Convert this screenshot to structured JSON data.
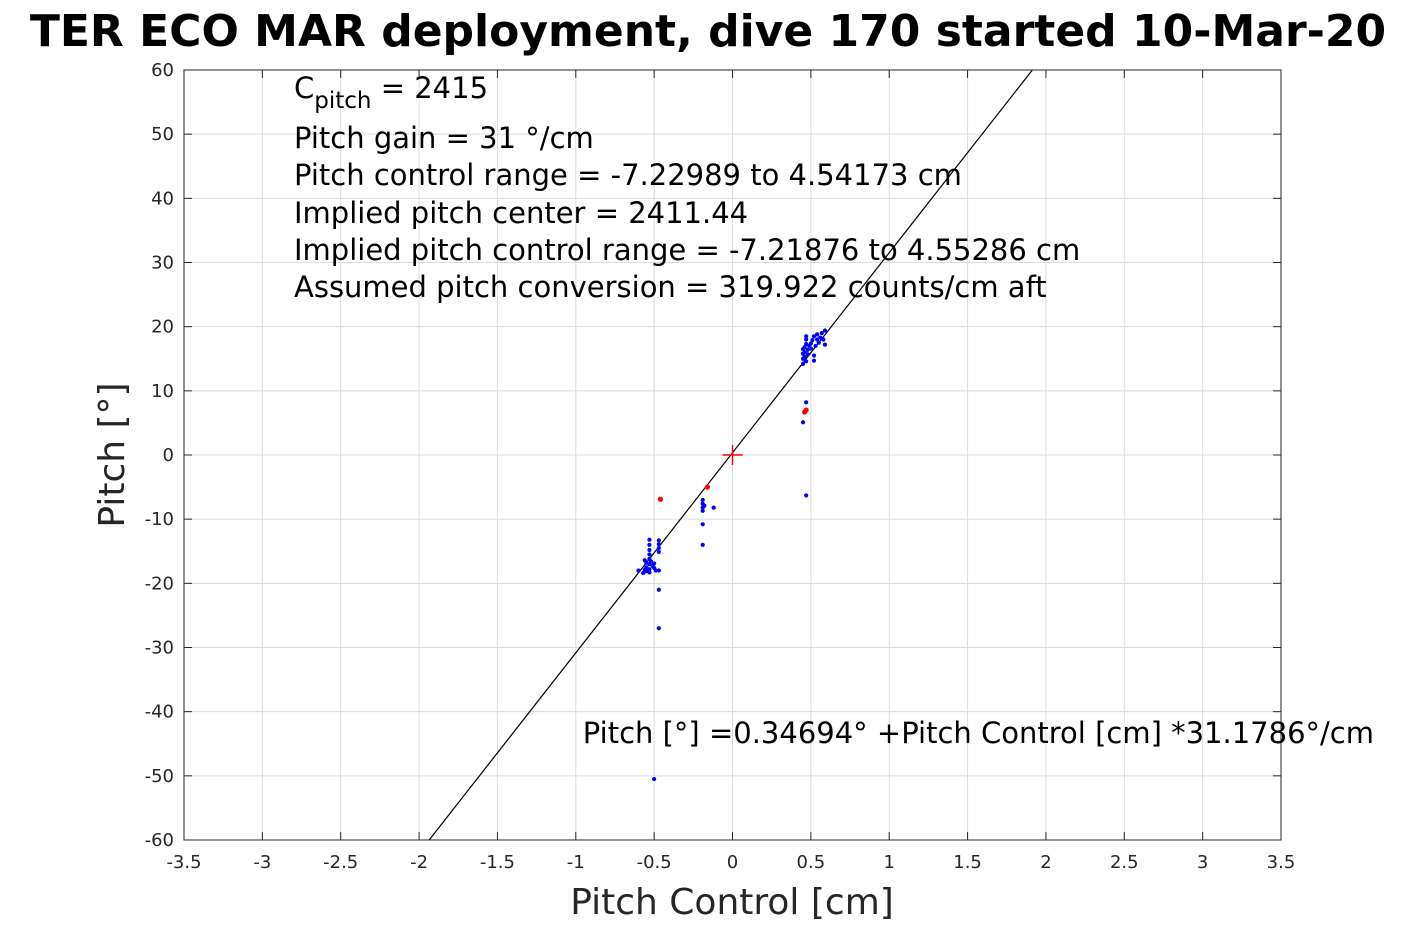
{
  "chart_data": {
    "type": "scatter",
    "title": "TER ECO MAR deployment, dive 170 started 10-Mar-20",
    "xlabel": "Pitch Control [cm]",
    "ylabel": "Pitch [°]",
    "xlim": [
      -3.5,
      3.5
    ],
    "ylim": [
      -60,
      60
    ],
    "grid": true,
    "x_ticks": [
      -3.5,
      -3,
      -2.5,
      -2,
      -1.5,
      -1,
      -0.5,
      0,
      0.5,
      1,
      1.5,
      2,
      2.5,
      3,
      3.5
    ],
    "y_ticks": [
      60,
      50,
      40,
      30,
      20,
      10,
      0,
      -10,
      -20,
      -30,
      -40,
      -50,
      -60
    ],
    "annotations": {
      "cpitch_symbol": "C",
      "cpitch_sub": "pitch",
      "cpitch_value": " = 2415",
      "pitch_gain": "Pitch gain = 31 °/cm",
      "control_range": "Pitch control range = -7.22989 to 4.54173 cm",
      "implied_center": "Implied pitch center = 2411.44",
      "implied_range": "Implied pitch control range = -7.21876 to 4.55286 cm",
      "conversion": "Assumed pitch conversion = 319.922 counts/cm aft",
      "fit_equation": "Pitch [°] =0.34694° +Pitch Control [cm] *31.1786°/cm"
    },
    "fit_line": {
      "intercept": 0.34694,
      "slope": 31.1786,
      "color": "#000000"
    },
    "center_marker": {
      "x": 0,
      "y": 0,
      "color": "#ff0000"
    },
    "colors": {
      "valid": "#0000ff",
      "flagged": "#ff0000"
    },
    "series": [
      {
        "points": [
          [
            -0.53,
            -13.2
          ],
          [
            -0.53,
            -14.0
          ],
          [
            -0.53,
            -14.8
          ],
          [
            -0.53,
            -15.5
          ],
          [
            -0.53,
            -16.2
          ],
          [
            -0.53,
            -17.0
          ],
          [
            -0.53,
            -17.8
          ],
          [
            -0.53,
            -18.3
          ],
          [
            -0.52,
            -16.6
          ],
          [
            -0.51,
            -17.3
          ],
          [
            -0.55,
            -16.8
          ],
          [
            -0.55,
            -17.5
          ],
          [
            -0.55,
            -18.1
          ],
          [
            -0.56,
            -16.4
          ],
          [
            -0.56,
            -17.9
          ],
          [
            -0.57,
            -18.4
          ],
          [
            -0.6,
            -18.0
          ],
          [
            -0.5,
            -16.9
          ],
          [
            -0.5,
            -17.6
          ],
          [
            -0.49,
            -18.0
          ],
          [
            -0.47,
            -13.3
          ],
          [
            -0.47,
            -13.9
          ],
          [
            -0.47,
            -14.5
          ],
          [
            -0.47,
            -15.1
          ],
          [
            -0.47,
            -18.0
          ],
          [
            -0.47,
            -21.0
          ],
          [
            -0.47,
            -27.0
          ],
          [
            -0.5,
            -50.5
          ],
          [
            -0.19,
            -7.0
          ],
          [
            -0.19,
            -7.6
          ],
          [
            -0.19,
            -8.2
          ],
          [
            -0.19,
            -8.7
          ],
          [
            -0.18,
            -7.9
          ],
          [
            -0.12,
            -8.2
          ],
          [
            -0.19,
            -10.8
          ],
          [
            -0.19,
            -14.0
          ],
          [
            0.45,
            14.2
          ],
          [
            0.45,
            15.0
          ],
          [
            0.45,
            15.8
          ],
          [
            0.45,
            16.5
          ],
          [
            0.46,
            15.3
          ],
          [
            0.46,
            16.0
          ],
          [
            0.46,
            16.8
          ],
          [
            0.47,
            17.3
          ],
          [
            0.47,
            18.0
          ],
          [
            0.47,
            18.5
          ],
          [
            0.47,
            14.6
          ],
          [
            0.48,
            15.7
          ],
          [
            0.48,
            16.4
          ],
          [
            0.49,
            17.0
          ],
          [
            0.5,
            17.4
          ],
          [
            0.5,
            16.6
          ],
          [
            0.51,
            17.9
          ],
          [
            0.52,
            18.5
          ],
          [
            0.52,
            15.5
          ],
          [
            0.52,
            14.7
          ],
          [
            0.53,
            17.0
          ],
          [
            0.54,
            18.0
          ],
          [
            0.54,
            18.8
          ],
          [
            0.55,
            17.5
          ],
          [
            0.56,
            18.3
          ],
          [
            0.57,
            19.0
          ],
          [
            0.58,
            18.0
          ],
          [
            0.59,
            19.4
          ],
          [
            0.59,
            17.2
          ],
          [
            0.47,
            8.2
          ],
          [
            0.45,
            5.1
          ],
          [
            0.47,
            -6.3
          ]
        ]
      },
      {
        "points": [
          [
            -0.46,
            -6.9
          ],
          [
            -0.16,
            -5.0
          ],
          [
            0.46,
            6.7
          ],
          [
            0.47,
            7.0
          ]
        ]
      }
    ]
  }
}
